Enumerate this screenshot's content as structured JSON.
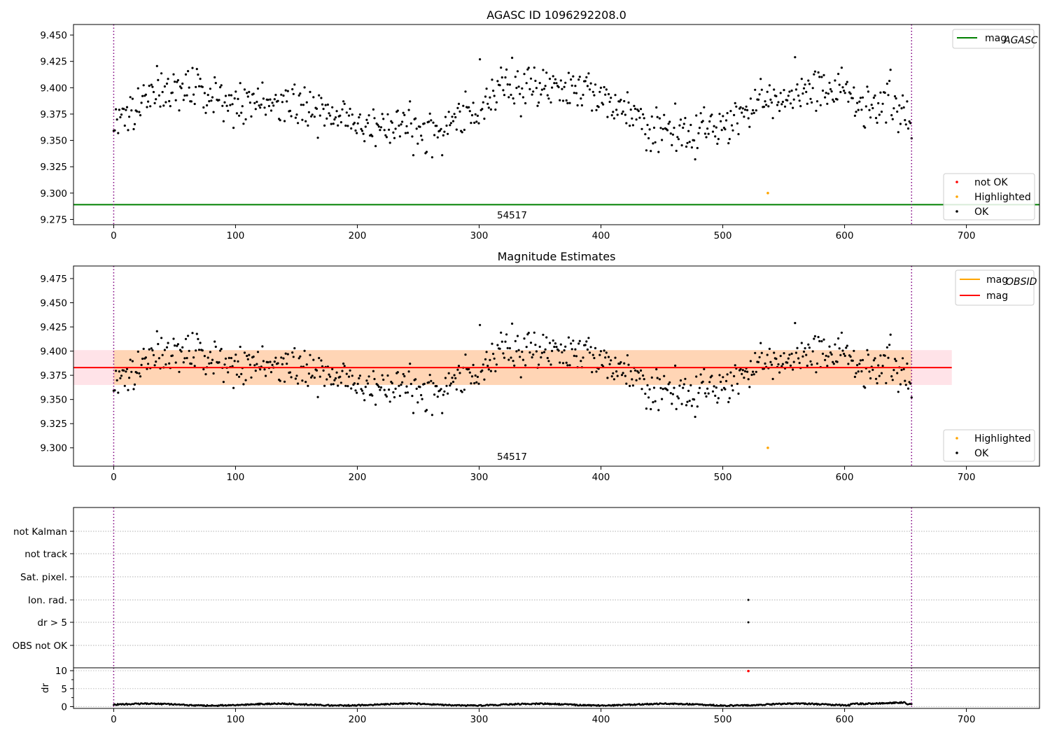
{
  "chart_data": [
    {
      "type": "scatter",
      "title": "AGASC ID 1096292208.0",
      "xlim": [
        -33,
        760
      ],
      "ylim": [
        9.27,
        9.46
      ],
      "xticks": [
        0,
        100,
        200,
        300,
        400,
        500,
        600,
        700
      ],
      "yticks": [
        9.275,
        9.3,
        9.325,
        9.35,
        9.375,
        9.4,
        9.425,
        9.45
      ],
      "vlines": [
        0,
        655
      ],
      "hline": {
        "name": "mag_AGASC",
        "y": 9.289,
        "color": "#008000"
      },
      "annotation": {
        "text": "54517",
        "x": 327
      },
      "series_highlighted": [
        {
          "x": 537,
          "y": 9.3
        }
      ],
      "legend_top": [
        {
          "label": "mag",
          "sub": "AGASC",
          "color": "#008000"
        }
      ],
      "legend_bottom": [
        {
          "label": "not OK",
          "color": "#ff0000"
        },
        {
          "label": "Highlighted",
          "color": "#ffa500"
        },
        {
          "label": "OK",
          "color": "#000000"
        }
      ]
    },
    {
      "type": "scatter",
      "title": "Magnitude Estimates",
      "xlim": [
        -33,
        760
      ],
      "ylim": [
        9.281,
        9.488
      ],
      "xticks": [
        0,
        100,
        200,
        300,
        400,
        500,
        600,
        700
      ],
      "yticks": [
        9.3,
        9.325,
        9.35,
        9.375,
        9.4,
        9.425,
        9.45,
        9.475
      ],
      "vlines": [
        0,
        655
      ],
      "mean_line": {
        "name": "mag",
        "y": 9.383,
        "color": "#ff0000"
      },
      "band_outer": {
        "low": 9.365,
        "high": 9.401,
        "x": [
          -33,
          688
        ]
      },
      "band_inner": {
        "low": 9.365,
        "high": 9.401,
        "x": [
          0,
          655
        ]
      },
      "annotation": {
        "text": "54517",
        "x": 327
      },
      "series_highlighted": [
        {
          "x": 537,
          "y": 9.3
        }
      ],
      "legend_top": [
        {
          "label": "mag",
          "sub": "OBSID",
          "color": "#ffa500"
        },
        {
          "label": "mag",
          "sub": "",
          "color": "#ff0000"
        }
      ],
      "legend_bottom": [
        {
          "label": "Highlighted",
          "color": "#ffa500"
        },
        {
          "label": "OK",
          "color": "#000000"
        }
      ]
    },
    {
      "type": "scatter",
      "xlim": [
        -33,
        760
      ],
      "xticks": [
        0,
        100,
        200,
        300,
        400,
        500,
        600,
        700
      ],
      "flag_labels": [
        "not Kalman",
        "not track",
        "Sat. pixel.",
        "Ion. rad.",
        "dr > 5",
        "OBS not OK"
      ],
      "flag_points": [
        {
          "flag": "Ion. rad.",
          "x": 521
        },
        {
          "flag": "dr > 5",
          "x": 521
        }
      ],
      "vlines": [
        0,
        655
      ]
    },
    {
      "type": "scatter",
      "ylabel": "dr",
      "xlim": [
        -33,
        760
      ],
      "ylim": [
        -0.5,
        10.8
      ],
      "xticks": [
        0,
        100,
        200,
        300,
        400,
        500,
        600,
        700
      ],
      "yticks": [
        0,
        5,
        10
      ],
      "vlines": [
        0,
        655
      ],
      "outlier": {
        "x": 521,
        "y": 9.9,
        "color": "#ff0000"
      }
    }
  ]
}
